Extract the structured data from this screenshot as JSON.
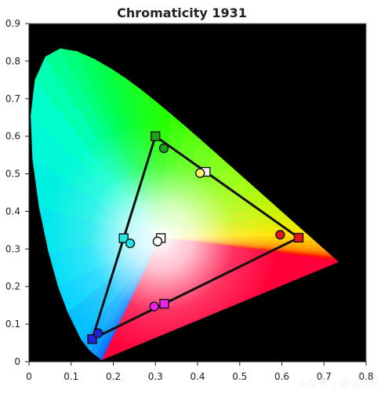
{
  "chart_data": {
    "type": "scatter",
    "title": "Chromaticity 1931",
    "xlabel": "",
    "ylabel": "",
    "xlim": [
      0,
      0.8
    ],
    "ylim": [
      0,
      0.9
    ],
    "x_ticks": [
      "0",
      "0.1",
      "0.2",
      "0.3",
      "0.4",
      "0.5",
      "0.6",
      "0.7",
      "0.8"
    ],
    "y_ticks": [
      "0",
      "0.1",
      "0.2",
      "0.3",
      "0.4",
      "0.5",
      "0.6",
      "0.7",
      "0.8",
      "0.9"
    ],
    "grid": false,
    "background": "#000000",
    "gamut_triangle": [
      {
        "x": 0.64,
        "y": 0.33
      },
      {
        "x": 0.3,
        "y": 0.6
      },
      {
        "x": 0.15,
        "y": 0.06
      }
    ],
    "series": [
      {
        "marker": "square",
        "points": [
          {
            "x": 0.64,
            "y": 0.33,
            "color": "#e8141b"
          },
          {
            "x": 0.3,
            "y": 0.6,
            "color": "#1aa41a"
          },
          {
            "x": 0.15,
            "y": 0.06,
            "color": "#2222dd"
          },
          {
            "x": 0.2246,
            "y": 0.3287,
            "color": "#22e6e6"
          },
          {
            "x": 0.3209,
            "y": 0.1542,
            "color": "#ee22ee"
          },
          {
            "x": 0.4193,
            "y": 0.5053,
            "color": "#f2f2f2"
          },
          {
            "x": 0.3127,
            "y": 0.329,
            "color": "#ffffff"
          }
        ]
      },
      {
        "marker": "circle",
        "points": [
          {
            "x": 0.596,
            "y": 0.338,
            "color": "#e8141b"
          },
          {
            "x": 0.32,
            "y": 0.568,
            "color": "#1aa41a"
          },
          {
            "x": 0.164,
            "y": 0.076,
            "color": "#2222dd"
          },
          {
            "x": 0.24,
            "y": 0.315,
            "color": "#22e6e6"
          },
          {
            "x": 0.297,
            "y": 0.147,
            "color": "#ee22ee"
          },
          {
            "x": 0.406,
            "y": 0.502,
            "color": "#f7f76a"
          },
          {
            "x": 0.305,
            "y": 0.32,
            "color": "#ffffff"
          }
        ]
      }
    ]
  },
  "watermark": "头条号 / 影音CN"
}
